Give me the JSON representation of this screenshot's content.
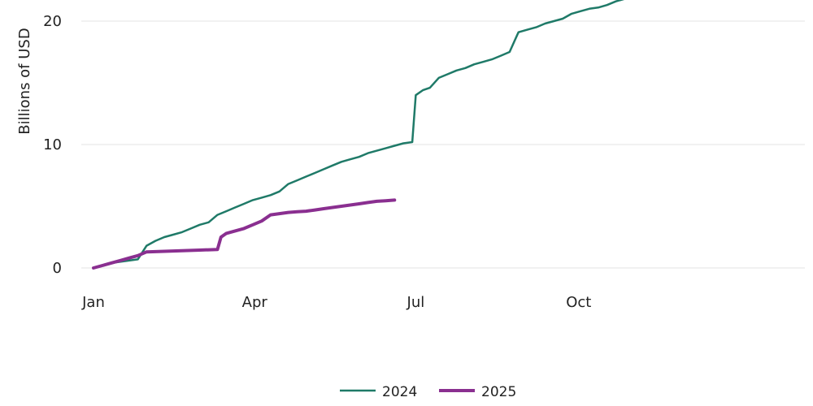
{
  "chart_data": {
    "type": "line",
    "ylabel": "Billions of USD",
    "xlabel": "",
    "x_ticks": [
      "Jan",
      "Apr",
      "Jul",
      "Oct"
    ],
    "y_ticks": [
      0,
      10,
      20
    ],
    "xlim": [
      0,
      365
    ],
    "ylim": [
      0,
      21
    ],
    "grid": "horizontal",
    "legend": "bottom-center",
    "series": [
      {
        "name": "2024",
        "color": "#1f7a68",
        "x": [
          0,
          5,
          10,
          15,
          20,
          25,
          30,
          35,
          40,
          45,
          50,
          55,
          60,
          65,
          70,
          75,
          80,
          85,
          90,
          95,
          100,
          105,
          110,
          115,
          120,
          125,
          130,
          135,
          140,
          145,
          150,
          155,
          160,
          165,
          170,
          175,
          180,
          182,
          186,
          190,
          195,
          200,
          205,
          210,
          215,
          220,
          225,
          230,
          235,
          240,
          245,
          250,
          255,
          260,
          265,
          270,
          275,
          280,
          285,
          290,
          295,
          300
        ],
        "values": [
          0,
          0.2,
          0.4,
          0.5,
          0.6,
          0.7,
          1.8,
          2.2,
          2.5,
          2.7,
          2.9,
          3.2,
          3.5,
          3.7,
          4.3,
          4.6,
          4.9,
          5.2,
          5.5,
          5.7,
          5.9,
          6.2,
          6.8,
          7.1,
          7.4,
          7.7,
          8.0,
          8.3,
          8.6,
          8.8,
          9.0,
          9.3,
          9.5,
          9.7,
          9.9,
          10.1,
          10.2,
          14.0,
          14.4,
          14.6,
          15.4,
          15.7,
          16.0,
          16.2,
          16.5,
          16.7,
          16.9,
          17.2,
          17.5,
          19.1,
          19.3,
          19.5,
          19.8,
          20.0,
          20.2,
          20.6,
          20.8,
          21.0,
          21.1,
          21.3,
          21.6,
          21.8
        ]
      },
      {
        "name": "2025",
        "color": "#8a2f90",
        "x": [
          0,
          5,
          10,
          15,
          20,
          25,
          30,
          40,
          50,
          60,
          70,
          72,
          75,
          80,
          85,
          90,
          95,
          100,
          105,
          110,
          115,
          120,
          125,
          130,
          135,
          140,
          145,
          150,
          155,
          160,
          165,
          170
        ],
        "values": [
          0,
          0.2,
          0.4,
          0.6,
          0.8,
          1.0,
          1.3,
          1.35,
          1.4,
          1.45,
          1.5,
          2.5,
          2.8,
          3.0,
          3.2,
          3.5,
          3.8,
          4.3,
          4.4,
          4.5,
          4.55,
          4.6,
          4.7,
          4.8,
          4.9,
          5.0,
          5.1,
          5.2,
          5.3,
          5.4,
          5.45,
          5.5
        ]
      }
    ]
  }
}
